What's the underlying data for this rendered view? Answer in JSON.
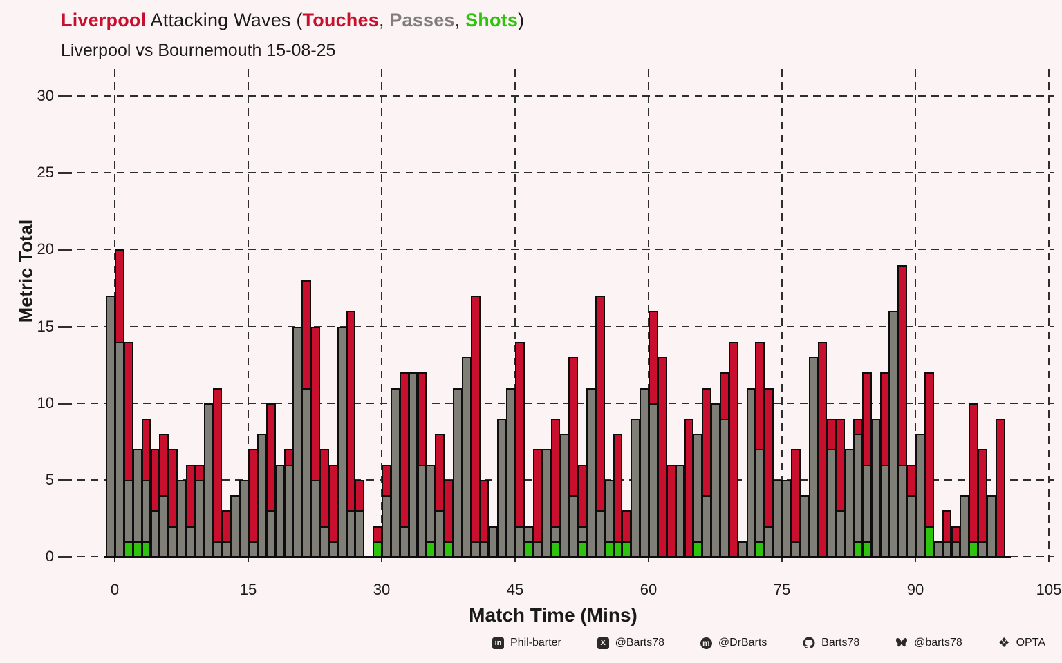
{
  "title": {
    "team": "Liverpool",
    "mid1": " Attacking Waves (",
    "touches": "Touches",
    "sep1": ", ",
    "passes": "Passes",
    "sep2": ", ",
    "shots": "Shots",
    "close": ")"
  },
  "subtitle": "Liverpool vs Bournemouth 15-08-25",
  "chart_data": {
    "type": "bar",
    "title": "Liverpool Attacking Waves (Touches, Passes, Shots)",
    "subtitle": "Liverpool vs Bournemouth 15-08-25",
    "xlabel": "Match Time (Mins)",
    "ylabel": "Metric Total",
    "x_ticks": [
      0,
      15,
      30,
      45,
      60,
      75,
      90,
      105
    ],
    "y_ticks": [
      0,
      5,
      10,
      15,
      20,
      25,
      30
    ],
    "xlim": [
      0,
      105
    ],
    "ylim": [
      0,
      31
    ],
    "grid": "dashed",
    "legend_position": "in-title",
    "minutes": [
      0,
      1,
      2,
      3,
      4,
      5,
      6,
      7,
      8,
      9,
      10,
      11,
      12,
      13,
      14,
      15,
      16,
      17,
      18,
      19,
      20,
      21,
      22,
      23,
      24,
      25,
      26,
      27,
      28,
      29,
      30,
      31,
      32,
      33,
      34,
      35,
      36,
      37,
      38,
      39,
      40,
      41,
      42,
      43,
      44,
      45,
      46,
      47,
      48,
      49,
      50,
      51,
      52,
      53,
      54,
      55,
      56,
      57,
      58,
      59,
      60,
      61,
      62,
      63,
      64,
      65,
      66,
      67,
      68,
      69,
      70,
      71,
      72,
      73,
      74,
      75,
      76,
      77,
      78,
      79,
      80,
      81,
      82,
      83,
      84,
      85,
      86,
      87,
      88,
      89,
      90,
      91,
      92,
      93,
      94,
      95,
      96,
      97,
      98,
      99,
      100
    ],
    "series": [
      {
        "name": "Touches",
        "color": "#C8102E",
        "values": [
          17,
          20,
          14,
          7,
          9,
          7,
          8,
          7,
          5,
          6,
          6,
          10,
          11,
          3,
          4,
          5,
          7,
          8,
          10,
          6,
          7,
          15,
          18,
          15,
          7,
          6,
          15,
          16,
          5,
          0,
          2,
          6,
          11,
          12,
          12,
          12,
          6,
          8,
          5,
          11,
          13,
          17,
          5,
          2,
          9,
          11,
          14,
          2,
          7,
          7,
          9,
          8,
          13,
          6,
          11,
          17,
          5,
          8,
          3,
          9,
          11,
          16,
          13,
          6,
          6,
          9,
          8,
          11,
          10,
          12,
          14,
          1,
          11,
          14,
          11,
          5,
          5,
          7,
          4,
          13,
          14,
          9,
          9,
          7,
          9,
          12,
          9,
          12,
          16,
          19,
          6,
          8,
          12,
          1,
          3,
          2,
          4,
          10,
          7,
          4,
          9
        ]
      },
      {
        "name": "Passes",
        "color": "#7F7F78",
        "values": [
          17,
          14,
          5,
          7,
          5,
          3,
          4,
          2,
          5,
          2,
          5,
          10,
          1,
          1,
          4,
          5,
          1,
          8,
          3,
          6,
          6,
          15,
          11,
          5,
          2,
          1,
          15,
          3,
          3,
          0,
          1,
          4,
          11,
          2,
          12,
          6,
          6,
          3,
          1,
          11,
          13,
          1,
          1,
          2,
          9,
          11,
          2,
          2,
          1,
          7,
          2,
          8,
          4,
          2,
          11,
          3,
          5,
          1,
          1,
          9,
          11,
          10,
          0,
          0,
          6,
          0,
          8,
          4,
          10,
          9,
          0,
          1,
          11,
          7,
          2,
          5,
          5,
          1,
          4,
          13,
          0,
          7,
          3,
          7,
          8,
          6,
          9,
          6,
          16,
          6,
          4,
          8,
          2,
          1,
          1,
          1,
          4,
          1,
          1,
          4,
          0
        ]
      },
      {
        "name": "Shots",
        "color": "#2EC40E",
        "values": [
          0,
          0,
          1,
          1,
          1,
          0,
          0,
          0,
          0,
          0,
          0,
          0,
          0,
          0,
          0,
          0,
          0,
          0,
          0,
          0,
          0,
          0,
          0,
          0,
          0,
          0,
          0,
          0,
          0,
          0,
          1,
          0,
          0,
          0,
          0,
          0,
          1,
          0,
          1,
          0,
          0,
          0,
          0,
          0,
          0,
          0,
          0,
          1,
          0,
          0,
          1,
          0,
          0,
          1,
          0,
          0,
          1,
          1,
          1,
          0,
          0,
          0,
          0,
          0,
          0,
          0,
          1,
          0,
          0,
          0,
          0,
          0,
          0,
          1,
          0,
          0,
          0,
          0,
          0,
          0,
          0,
          0,
          0,
          0,
          1,
          1,
          0,
          0,
          0,
          0,
          0,
          0,
          2,
          0,
          0,
          0,
          0,
          1,
          0,
          0,
          0
        ]
      }
    ]
  },
  "colors": {
    "touches": "#C8102E",
    "passes": "#7F7F78",
    "shots": "#2EC40E",
    "background": "#FCF3F4",
    "outline": "#0D0D0D",
    "grid": "#2E2E2E",
    "text": "#1A1A1A"
  },
  "footer": {
    "items": [
      {
        "icon": "linkedin-icon",
        "label": "Phil-barter"
      },
      {
        "icon": "x-icon",
        "label": "@Barts78"
      },
      {
        "icon": "mastodon-icon",
        "label": "@DrBarts"
      },
      {
        "icon": "github-icon",
        "label": "Barts78"
      },
      {
        "icon": "bluesky-icon",
        "label": "@barts78"
      },
      {
        "icon": "dropbox-icon",
        "label": "OPTA"
      }
    ]
  }
}
